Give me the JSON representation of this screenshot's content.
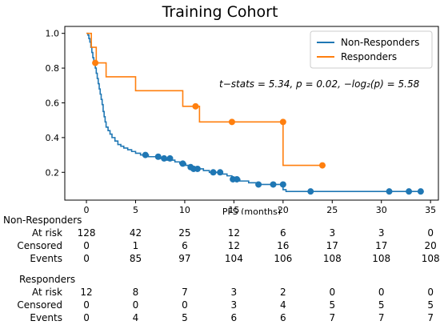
{
  "chart_data": {
    "type": "line",
    "title": "Training Cohort",
    "xlabel": "PFS (months)",
    "ylabel": "",
    "xlim": [
      -2.2,
      35.8
    ],
    "ylim": [
      0.04,
      1.04
    ],
    "x_ticks": [
      0,
      5,
      10,
      15,
      20,
      25,
      30,
      35
    ],
    "y_ticks": [
      0.2,
      0.4,
      0.6,
      0.8,
      1.0
    ],
    "x_tick_labels": [
      "0",
      "5",
      "10",
      "15",
      "20",
      "25",
      "30",
      "35"
    ],
    "y_tick_labels": [
      "0.2",
      "0.4",
      "0.6",
      "0.8",
      "1.0"
    ],
    "annotation": "t−stats = 5.34, p = 0.02, −log₂(p) = 5.58",
    "legend": {
      "placement": "top-right",
      "entries": [
        "Non-Responders",
        "Responders"
      ]
    },
    "series": [
      {
        "name": "Non-Responders",
        "color": "#1f77b4",
        "steps": [
          [
            0,
            1.0
          ],
          [
            0.15,
            0.99
          ],
          [
            0.25,
            0.97
          ],
          [
            0.35,
            0.95
          ],
          [
            0.45,
            0.92
          ],
          [
            0.55,
            0.89
          ],
          [
            0.65,
            0.86
          ],
          [
            0.75,
            0.83
          ],
          [
            0.9,
            0.8
          ],
          [
            1.0,
            0.77
          ],
          [
            1.1,
            0.74
          ],
          [
            1.2,
            0.71
          ],
          [
            1.3,
            0.68
          ],
          [
            1.4,
            0.65
          ],
          [
            1.5,
            0.62
          ],
          [
            1.6,
            0.59
          ],
          [
            1.7,
            0.55
          ],
          [
            1.8,
            0.52
          ],
          [
            1.9,
            0.49
          ],
          [
            2.0,
            0.46
          ],
          [
            2.2,
            0.44
          ],
          [
            2.4,
            0.42
          ],
          [
            2.6,
            0.4
          ],
          [
            2.9,
            0.38
          ],
          [
            3.2,
            0.36
          ],
          [
            3.5,
            0.35
          ],
          [
            3.8,
            0.34
          ],
          [
            4.2,
            0.33
          ],
          [
            4.6,
            0.32
          ],
          [
            5.0,
            0.31
          ],
          [
            5.5,
            0.3
          ],
          [
            6.3,
            0.29
          ],
          [
            7.2,
            0.28
          ],
          [
            8.2,
            0.27
          ],
          [
            9.0,
            0.26
          ],
          [
            9.5,
            0.25
          ],
          [
            10.1,
            0.24
          ],
          [
            10.7,
            0.23
          ],
          [
            11.3,
            0.22
          ],
          [
            11.9,
            0.21
          ],
          [
            12.5,
            0.2
          ],
          [
            13.8,
            0.19
          ],
          [
            14.3,
            0.18
          ],
          [
            14.8,
            0.16
          ],
          [
            15.6,
            0.15
          ],
          [
            16.5,
            0.14
          ],
          [
            17.5,
            0.13
          ],
          [
            20.0,
            0.1
          ],
          [
            20.3,
            0.09
          ],
          [
            34.0,
            0.09
          ]
        ],
        "censored": [
          [
            6.0,
            0.3
          ],
          [
            7.3,
            0.29
          ],
          [
            7.9,
            0.28
          ],
          [
            8.5,
            0.28
          ],
          [
            9.8,
            0.25
          ],
          [
            10.6,
            0.23
          ],
          [
            10.9,
            0.22
          ],
          [
            11.3,
            0.22
          ],
          [
            12.9,
            0.2
          ],
          [
            13.6,
            0.2
          ],
          [
            14.9,
            0.16
          ],
          [
            15.3,
            0.16
          ],
          [
            17.5,
            0.13
          ],
          [
            19.0,
            0.13
          ],
          [
            20.0,
            0.13
          ],
          [
            22.8,
            0.09
          ],
          [
            30.8,
            0.09
          ],
          [
            32.8,
            0.09
          ],
          [
            34.0,
            0.09
          ]
        ]
      },
      {
        "name": "Responders",
        "color": "#ff7f0e",
        "steps": [
          [
            0,
            1.0
          ],
          [
            0.5,
            0.92
          ],
          [
            1.0,
            0.83
          ],
          [
            2.0,
            0.75
          ],
          [
            5.0,
            0.67
          ],
          [
            9.8,
            0.58
          ],
          [
            11.5,
            0.49
          ],
          [
            20.0,
            0.24
          ],
          [
            24.0,
            0.24
          ]
        ],
        "censored": [
          [
            0.9,
            0.83
          ],
          [
            11.1,
            0.58
          ],
          [
            14.8,
            0.49
          ],
          [
            20.0,
            0.49
          ],
          [
            24.0,
            0.24
          ]
        ]
      }
    ],
    "risk_table": {
      "columns": [
        "0",
        "5",
        "10",
        "15",
        "20",
        "25",
        "30",
        "35"
      ],
      "groups": [
        {
          "name": "Non-Responders",
          "rows": [
            {
              "label": "At risk",
              "values": [
                "128",
                "42",
                "25",
                "12",
                "6",
                "3",
                "3",
                "0"
              ]
            },
            {
              "label": "Censored",
              "values": [
                "0",
                "1",
                "6",
                "12",
                "16",
                "17",
                "17",
                "20"
              ]
            },
            {
              "label": "Events",
              "values": [
                "0",
                "85",
                "97",
                "104",
                "106",
                "108",
                "108",
                "108"
              ]
            }
          ]
        },
        {
          "name": "Responders",
          "rows": [
            {
              "label": "At risk",
              "values": [
                "12",
                "8",
                "7",
                "3",
                "2",
                "0",
                "0",
                "0"
              ]
            },
            {
              "label": "Censored",
              "values": [
                "0",
                "0",
                "0",
                "3",
                "4",
                "5",
                "5",
                "5"
              ]
            },
            {
              "label": "Events",
              "values": [
                "0",
                "4",
                "5",
                "6",
                "6",
                "7",
                "7",
                "7"
              ]
            }
          ]
        }
      ]
    }
  }
}
